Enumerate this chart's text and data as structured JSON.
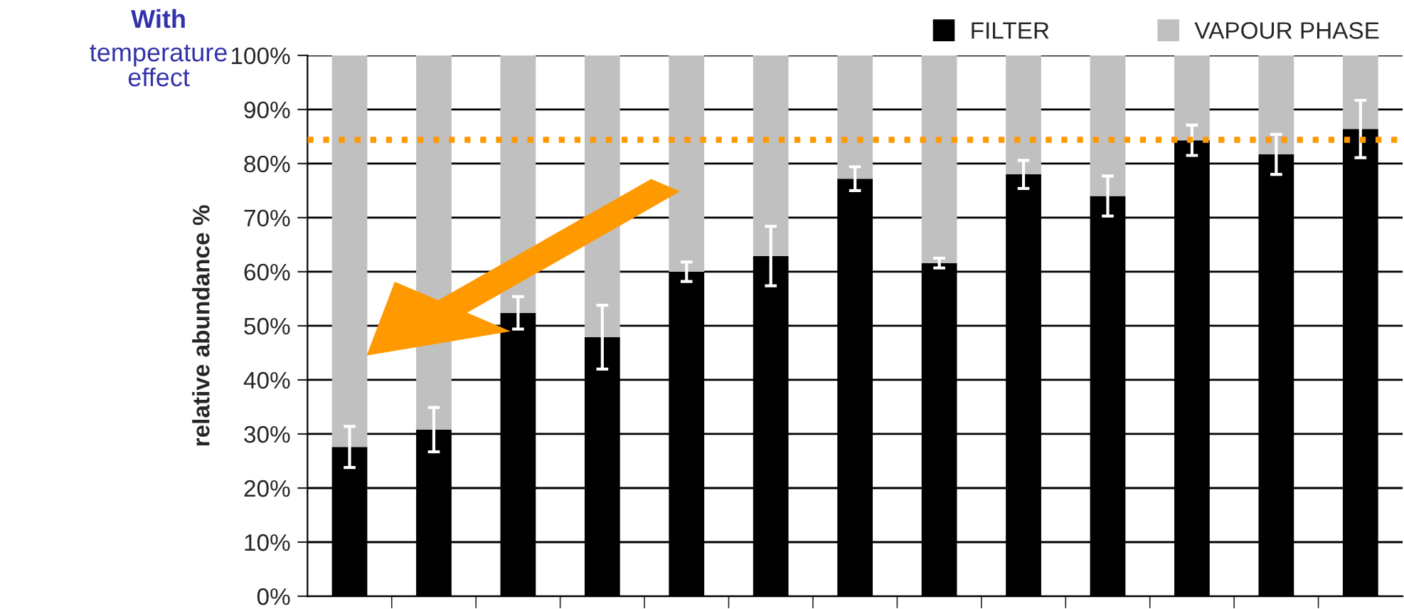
{
  "chart_data": {
    "type": "bar",
    "stacked": true,
    "ylabel": "relative abundance %",
    "categories": [
      null,
      null,
      null,
      null,
      null,
      null,
      null,
      null,
      null,
      null,
      null,
      null,
      null
    ],
    "series": [
      {
        "name": "FILTER",
        "color": "#000000",
        "values": [
          27.6,
          30.8,
          52.4,
          47.9,
          60.0,
          62.9,
          77.2,
          61.6,
          78.0,
          74.0,
          84.3,
          81.7,
          86.4
        ],
        "errors": [
          3.8,
          4.1,
          3.0,
          5.9,
          1.8,
          5.5,
          2.2,
          0.9,
          2.6,
          3.7,
          2.8,
          3.7,
          5.3
        ]
      },
      {
        "name": "VAPOUR PHASE",
        "color": "#c0c0c0",
        "values": [
          72.4,
          69.2,
          47.6,
          52.1,
          40.0,
          37.1,
          22.8,
          38.4,
          22.0,
          26.0,
          15.7,
          18.3,
          13.6
        ]
      }
    ],
    "ylim": [
      0,
      100
    ],
    "yticks": [
      {
        "value": 0,
        "label": "0%"
      },
      {
        "value": 10,
        "label": "10%"
      },
      {
        "value": 20,
        "label": "20%"
      },
      {
        "value": 30,
        "label": "30%"
      },
      {
        "value": 40,
        "label": "40%"
      },
      {
        "value": 50,
        "label": "50%"
      },
      {
        "value": 60,
        "label": "60%"
      },
      {
        "value": 70,
        "label": "70%"
      },
      {
        "value": 80,
        "label": "80%"
      },
      {
        "value": 90,
        "label": "90%"
      },
      {
        "value": 100,
        "label": "100%"
      }
    ],
    "ref_lines": [
      {
        "axis": "y",
        "value": 84.4,
        "color": "#ff9900",
        "line_style": "dotted"
      }
    ],
    "annotations": [
      "With",
      "temperature\neffect"
    ],
    "grid": "y",
    "legend": "top right"
  }
}
